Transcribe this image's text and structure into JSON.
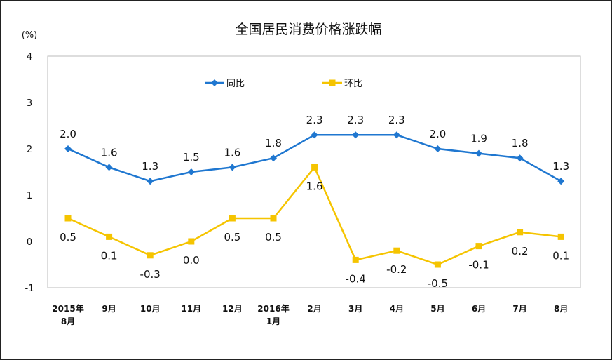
{
  "chart_data": {
    "type": "line",
    "title": "全国居民消费价格涨跌幅",
    "ylabel": "(%)",
    "xlabel": "",
    "ylim": [
      -1,
      4
    ],
    "yticks": [
      -1,
      0,
      1,
      2,
      3,
      4
    ],
    "grid": false,
    "legend_position": "top-center",
    "categories": [
      "2015年\n8月",
      "9月",
      "10月",
      "11月",
      "12月",
      "2016年\n1月",
      "2月",
      "3月",
      "4月",
      "5月",
      "6月",
      "7月",
      "8月"
    ],
    "series": [
      {
        "name": "同比",
        "color": "#1f77d0",
        "marker": "diamond",
        "values": [
          2.0,
          1.6,
          1.3,
          1.5,
          1.6,
          1.8,
          2.3,
          2.3,
          2.3,
          2.0,
          1.9,
          1.8,
          1.3
        ]
      },
      {
        "name": "环比",
        "color": "#f5c400",
        "marker": "square",
        "values": [
          0.5,
          0.1,
          -0.3,
          0.0,
          0.5,
          0.5,
          1.6,
          -0.4,
          -0.2,
          -0.5,
          -0.1,
          0.2,
          0.1
        ]
      }
    ]
  }
}
